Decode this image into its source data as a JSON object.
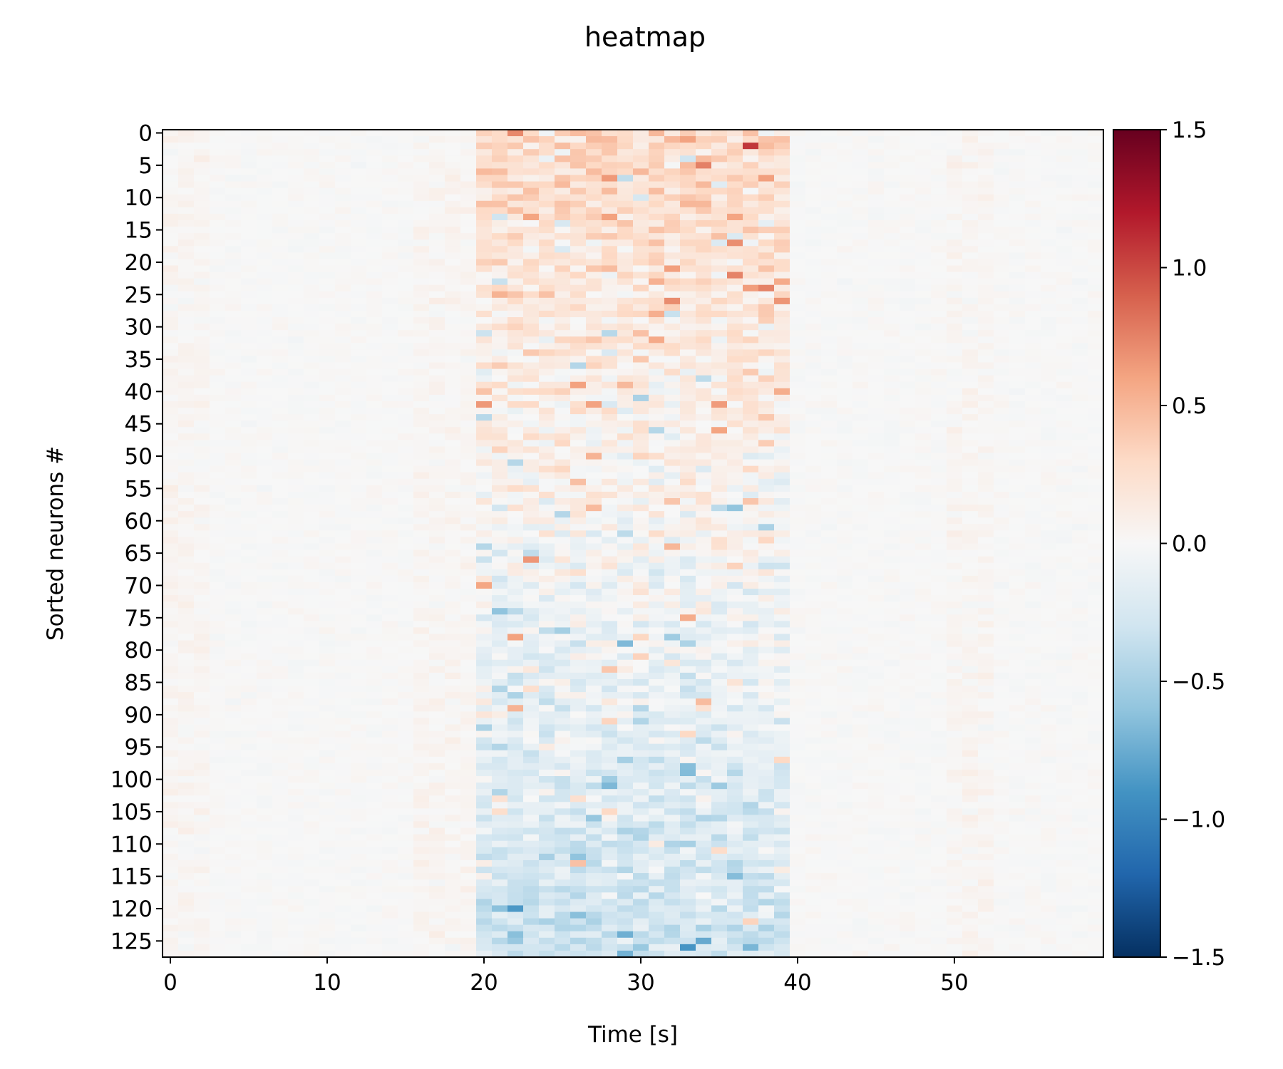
{
  "chart_data": {
    "type": "heatmap",
    "title": "heatmap",
    "xlabel": "Time [s]",
    "ylabel": "Sorted neurons #",
    "x_range": [
      -0.5,
      59.5
    ],
    "y_range": [
      0,
      127
    ],
    "n_cols": 60,
    "n_rows": 128,
    "x_ticks": [
      0,
      10,
      20,
      30,
      40,
      50
    ],
    "y_ticks": [
      0,
      5,
      10,
      15,
      20,
      25,
      30,
      35,
      40,
      45,
      50,
      55,
      60,
      65,
      70,
      75,
      80,
      85,
      90,
      95,
      100,
      105,
      110,
      115,
      120,
      125
    ],
    "colormap": "RdBu_r",
    "color_range": [
      -1.5,
      1.5
    ],
    "colorbar_ticks": [
      1.5,
      1.0,
      0.5,
      0.0,
      -0.5,
      -1.0,
      -1.5
    ],
    "colorbar_tick_labels": [
      "1.5",
      "1.0",
      "0.5",
      "0.0",
      "−0.5",
      "−1.0",
      "−1.5"
    ],
    "stimulus_window": [
      20,
      39
    ],
    "notes_visible": [],
    "grid": false
  }
}
